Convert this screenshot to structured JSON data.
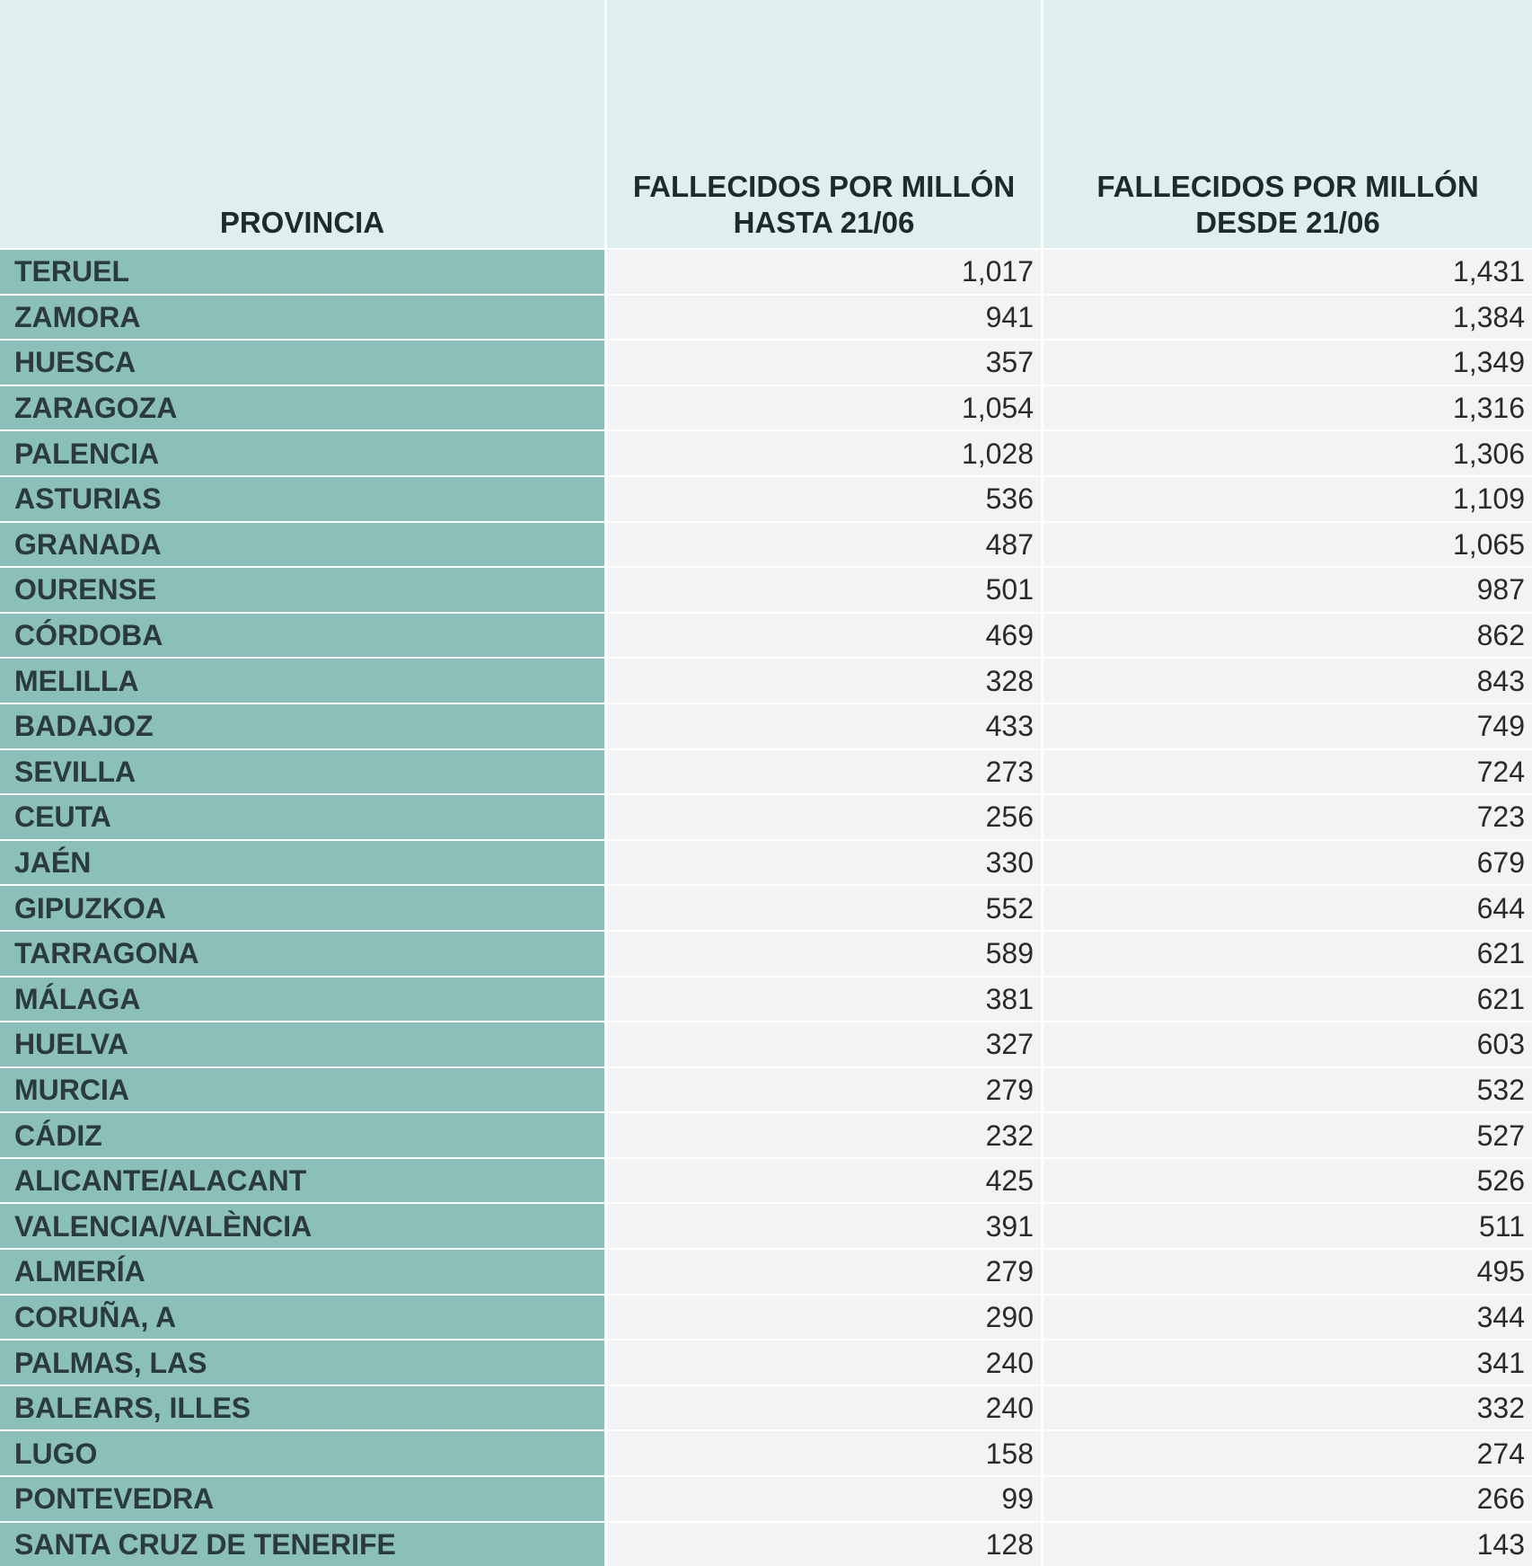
{
  "chart_data": {
    "type": "table",
    "columns": [
      "PROVINCIA",
      "FALLECIDOS POR MILLÓN HASTA 21/06",
      "FALLECIDOS POR MILLÓN DESDE 21/06"
    ],
    "rows": [
      {
        "provincia": "TERUEL",
        "hasta": "1,017",
        "desde": "1,431"
      },
      {
        "provincia": "ZAMORA",
        "hasta": "941",
        "desde": "1,384"
      },
      {
        "provincia": "HUESCA",
        "hasta": "357",
        "desde": "1,349"
      },
      {
        "provincia": "ZARAGOZA",
        "hasta": "1,054",
        "desde": "1,316"
      },
      {
        "provincia": "PALENCIA",
        "hasta": "1,028",
        "desde": "1,306"
      },
      {
        "provincia": "ASTURIAS",
        "hasta": "536",
        "desde": "1,109"
      },
      {
        "provincia": "GRANADA",
        "hasta": "487",
        "desde": "1,065"
      },
      {
        "provincia": "OURENSE",
        "hasta": "501",
        "desde": "987"
      },
      {
        "provincia": "CÓRDOBA",
        "hasta": "469",
        "desde": "862"
      },
      {
        "provincia": "MELILLA",
        "hasta": "328",
        "desde": "843"
      },
      {
        "provincia": "BADAJOZ",
        "hasta": "433",
        "desde": "749"
      },
      {
        "provincia": "SEVILLA",
        "hasta": "273",
        "desde": "724"
      },
      {
        "provincia": "CEUTA",
        "hasta": "256",
        "desde": "723"
      },
      {
        "provincia": "JAÉN",
        "hasta": "330",
        "desde": "679"
      },
      {
        "provincia": "GIPUZKOA",
        "hasta": "552",
        "desde": "644"
      },
      {
        "provincia": "TARRAGONA",
        "hasta": "589",
        "desde": "621"
      },
      {
        "provincia": "MÁLAGA",
        "hasta": "381",
        "desde": "621"
      },
      {
        "provincia": "HUELVA",
        "hasta": "327",
        "desde": "603"
      },
      {
        "provincia": "MURCIA",
        "hasta": "279",
        "desde": "532"
      },
      {
        "provincia": "CÁDIZ",
        "hasta": "232",
        "desde": "527"
      },
      {
        "provincia": "ALICANTE/ALACANT",
        "hasta": "425",
        "desde": "526"
      },
      {
        "provincia": "VALENCIA/VALÈNCIA",
        "hasta": "391",
        "desde": "511"
      },
      {
        "provincia": "ALMERÍA",
        "hasta": "279",
        "desde": "495"
      },
      {
        "provincia": "CORUÑA, A",
        "hasta": "290",
        "desde": "344"
      },
      {
        "provincia": "PALMAS, LAS",
        "hasta": "240",
        "desde": "341"
      },
      {
        "provincia": "BALEARS, ILLES",
        "hasta": "240",
        "desde": "332"
      },
      {
        "provincia": "LUGO",
        "hasta": "158",
        "desde": "274"
      },
      {
        "provincia": "PONTEVEDRA",
        "hasta": "99",
        "desde": "266"
      },
      {
        "provincia": "SANTA CRUZ DE TENERIFE",
        "hasta": "128",
        "desde": "143"
      }
    ]
  },
  "colors": {
    "header_background": "#deefed",
    "province_background": "#8bbfb9",
    "value_background": "#f2f3f5"
  }
}
